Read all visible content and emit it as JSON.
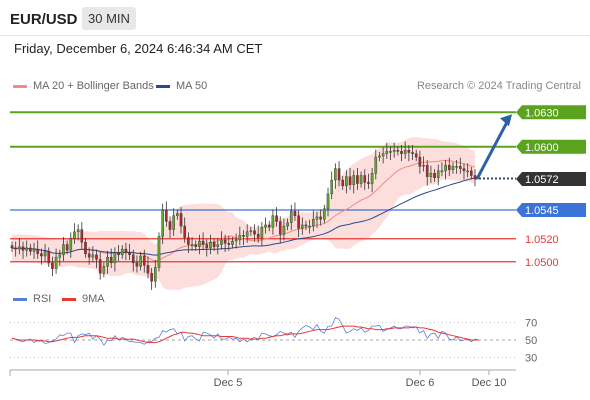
{
  "header": {
    "pair": "EUR/USD",
    "timeframe": "30 MIN",
    "datetime": "Friday, December 6, 2024 6:46:34 AM CET",
    "credit": "Research © 2024 Trading Central"
  },
  "legend": {
    "ma20": {
      "label": "MA 20 + Bollinger Bands",
      "color": "#f28b82"
    },
    "ma50": {
      "label": "MA 50",
      "color": "#2a4b8d"
    },
    "rsi": {
      "label": "RSI",
      "color": "#5b7fd6"
    },
    "ma9": {
      "label": "9MA",
      "color": "#e53935"
    }
  },
  "chart_data": {
    "type": "candlestick",
    "price_range": [
      1.0485,
      1.0645
    ],
    "x_labels": [
      "Dec 5",
      "Dec 6",
      "Dec 10"
    ],
    "levels": [
      {
        "value": 1.063,
        "label": "1.0630",
        "color": "#5ba31e",
        "kind": "resistance"
      },
      {
        "value": 1.06,
        "label": "1.0600",
        "color": "#5ba31e",
        "kind": "resistance"
      },
      {
        "value": 1.0545,
        "label": "1.0545",
        "color": "#3c73d6",
        "kind": "pivot"
      },
      {
        "value": 1.052,
        "label": "1.0520",
        "color": "#e53935",
        "kind": "support"
      },
      {
        "value": 1.05,
        "label": "1.0500",
        "color": "#e53935",
        "kind": "support"
      }
    ],
    "current_price": {
      "value": 1.0572,
      "label": "1.0572"
    },
    "forecast_arrow": {
      "from": 1.0572,
      "to": 1.063
    },
    "close": [
      1.0512,
      1.0511,
      1.0513,
      1.051,
      1.0512,
      1.0509,
      1.0511,
      1.0507,
      1.0505,
      1.0509,
      1.0499,
      1.0494,
      1.0504,
      1.0506,
      1.0515,
      1.051,
      1.052,
      1.0526,
      1.0528,
      1.0517,
      1.0507,
      1.0504,
      1.0506,
      1.0502,
      1.049,
      1.0496,
      1.0504,
      1.0499,
      1.0508,
      1.0506,
      1.0511,
      1.0508,
      1.0506,
      1.0499,
      1.0496,
      1.0505,
      1.0497,
      1.049,
      1.0483,
      1.0495,
      1.0522,
      1.0545,
      1.0535,
      1.0528,
      1.054,
      1.0542,
      1.0531,
      1.0521,
      1.0515,
      1.0515,
      1.0513,
      1.0518,
      1.0515,
      1.0512,
      1.0517,
      1.0513,
      1.0515,
      1.0519,
      1.0516,
      1.0515,
      1.0518,
      1.0519,
      1.0523,
      1.0522,
      1.0526,
      1.0527,
      1.0524,
      1.0521,
      1.053,
      1.0532,
      1.053,
      1.054,
      1.0535,
      1.0524,
      1.0531,
      1.0534,
      1.0544,
      1.054,
      1.0529,
      1.0532,
      1.0531,
      1.0531,
      1.0537,
      1.0539,
      1.0537,
      1.0546,
      1.0559,
      1.0571,
      1.0581,
      1.0571,
      1.0566,
      1.0574,
      1.0567,
      1.0575,
      1.0568,
      1.0575,
      1.0569,
      1.0568,
      1.0577,
      1.0591,
      1.0592,
      1.0594,
      1.0596,
      1.0596,
      1.0597,
      1.0596,
      1.0594,
      1.0597,
      1.0595,
      1.0594,
      1.0591,
      1.0583,
      1.0584,
      1.0574,
      1.0577,
      1.0573,
      1.0579,
      1.0579,
      1.0584,
      1.058,
      1.0583,
      1.0583,
      1.0581,
      1.0579,
      1.0579,
      1.0575,
      1.0572
    ],
    "rsi": {
      "levels": [
        70,
        50,
        30
      ],
      "values": [
        52,
        51,
        49,
        48,
        50,
        51,
        47,
        50,
        49,
        46,
        47,
        49,
        51,
        56,
        55,
        58,
        58,
        47,
        55,
        57,
        56,
        58,
        51,
        55,
        51,
        44,
        50,
        49,
        55,
        50,
        53,
        51,
        48,
        48,
        47,
        47,
        45,
        48,
        48,
        52,
        53,
        61,
        59,
        62,
        63,
        57,
        59,
        49,
        54,
        55,
        51,
        49,
        59,
        58,
        56,
        52,
        57,
        51,
        51,
        53,
        51,
        52,
        48,
        51,
        48,
        51,
        53,
        51,
        58,
        57,
        55,
        54,
        56,
        60,
        58,
        57,
        59,
        53,
        60,
        64,
        67,
        65,
        62,
        68,
        60,
        58,
        66,
        66,
        76,
        74,
        66,
        58,
        60,
        63,
        61,
        64,
        59,
        61,
        66,
        66,
        67,
        60,
        62,
        64,
        66,
        63,
        63,
        66,
        66,
        64,
        65,
        58,
        61,
        52,
        57,
        58,
        52,
        60,
        58,
        51,
        50,
        54,
        49,
        50,
        51,
        48,
        51,
        50
      ],
      "ma9": [
        52,
        51,
        50,
        50,
        50,
        50,
        50,
        49,
        49,
        49,
        48,
        48,
        49,
        50,
        51,
        52,
        53,
        53,
        53,
        54,
        55,
        55,
        55,
        55,
        54,
        53,
        52,
        52,
        52,
        51,
        51,
        51,
        51,
        51,
        50,
        49,
        48,
        47,
        47,
        47,
        48,
        50,
        52,
        54,
        56,
        57,
        59,
        59,
        58,
        58,
        57,
        56,
        55,
        55,
        55,
        55,
        55,
        54,
        54,
        54,
        54,
        53,
        52,
        52,
        52,
        51,
        51,
        51,
        52,
        52,
        53,
        54,
        55,
        55,
        56,
        56,
        57,
        57,
        57,
        58,
        59,
        60,
        61,
        62,
        62,
        62,
        62,
        63,
        64,
        65,
        66,
        66,
        66,
        66,
        65,
        65,
        64,
        63,
        63,
        62,
        62,
        62,
        63,
        63,
        64,
        64,
        64,
        64,
        64,
        65,
        65,
        64,
        64,
        63,
        62,
        61,
        59,
        58,
        57,
        56,
        55,
        54,
        53,
        52,
        51,
        50,
        50,
        50
      ]
    }
  }
}
